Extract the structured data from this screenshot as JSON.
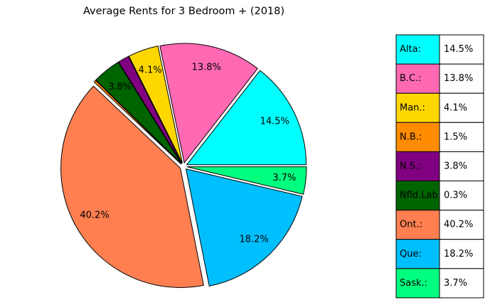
{
  "chart_data": {
    "type": "pie",
    "title": "Average Rents for 3 Bedroom + (2018)",
    "start_angle_deg": 360,
    "direction": "counterclockwise",
    "explode": 0.03,
    "slices": [
      {
        "label": "Alta:",
        "value": 14.5,
        "value_label": "14.5%",
        "color": "#00ffff",
        "show_label": true
      },
      {
        "label": "B.C.:",
        "value": 13.8,
        "value_label": "13.8%",
        "color": "#ff69b4",
        "show_label": true
      },
      {
        "label": "Man.:",
        "value": 4.1,
        "value_label": "4.1%",
        "color": "#ffd700",
        "show_label": true
      },
      {
        "label": "N.B.:",
        "value": 1.5,
        "value_label": "1.5%",
        "color": "#800080",
        "show_label": false
      },
      {
        "label": "N.S.:",
        "value": 3.8,
        "value_label": "3.8%",
        "color": "#006400",
        "show_label": true
      },
      {
        "label": "Nfld.Lab",
        "value": 0.3,
        "value_label": "0.3%",
        "color": "#ff8c00",
        "show_label": false
      },
      {
        "label": "Ont.:",
        "value": 40.2,
        "value_label": "40.2%",
        "color": "#ff7f50",
        "show_label": true
      },
      {
        "label": "Que:",
        "value": 18.2,
        "value_label": "18.2%",
        "color": "#00bfff",
        "show_label": true
      },
      {
        "label": "Sask.:",
        "value": 3.7,
        "value_label": "3.7%",
        "color": "#00ff7f",
        "show_label": true
      }
    ],
    "table": {
      "rows": [
        {
          "label": "Alta:",
          "value": "14.5%",
          "color": "#00ffff"
        },
        {
          "label": "B.C.:",
          "value": "13.8%",
          "color": "#ff69b4"
        },
        {
          "label": "Man.:",
          "value": "4.1%",
          "color": "#ffd700"
        },
        {
          "label": "N.B.:",
          "value": "1.5%",
          "color": "#ff8c00"
        },
        {
          "label": "N.S.:",
          "value": "3.8%",
          "color": "#800080"
        },
        {
          "label": "Nfld.Lab",
          "value": "0.3%",
          "color": "#006400"
        },
        {
          "label": "Ont.:",
          "value": "40.2%",
          "color": "#ff7f50"
        },
        {
          "label": "Que:",
          "value": "18.2%",
          "color": "#00bfff"
        },
        {
          "label": "Sask.:",
          "value": "3.7%",
          "color": "#00ff7f"
        }
      ]
    }
  }
}
